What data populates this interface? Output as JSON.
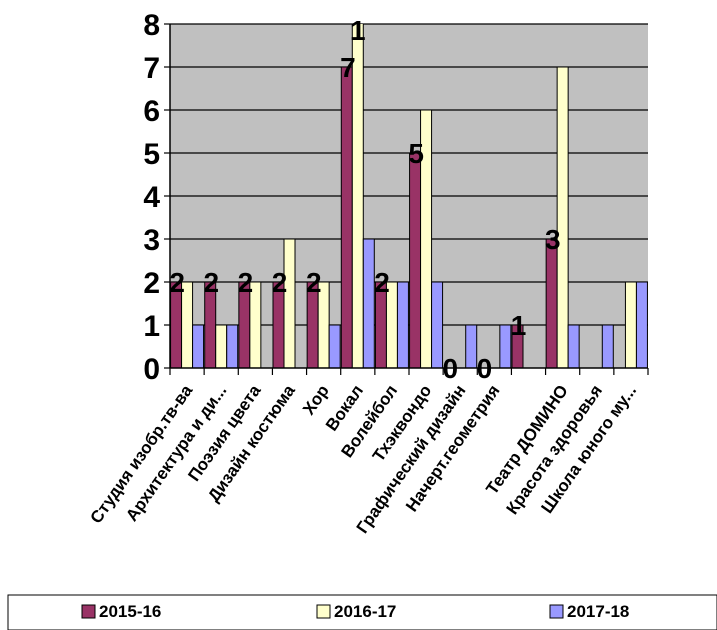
{
  "chart_data": {
    "type": "bar",
    "categories": [
      "Студия изобр.тв-ва",
      "Архитектура и ди...",
      "Поэзия цвета",
      "Дизайн костюма",
      "Хор",
      "Вокал",
      "Волейбол",
      "Тхэквондо",
      "Графический дизайн",
      "Начерт.геометрия",
      "",
      "Театр ДОМИНО",
      "Красота здоровья",
      "Школа юного му..."
    ],
    "series": [
      {
        "name": "2015-16",
        "color": "#993366",
        "values": [
          2,
          2,
          2,
          2,
          2,
          7,
          2,
          5,
          0,
          0,
          1,
          3,
          0,
          0
        ]
      },
      {
        "name": "2016-17",
        "color": "#FFFFCC",
        "values": [
          2,
          1,
          2,
          3,
          2,
          8,
          2,
          6,
          0,
          0,
          0,
          7,
          0,
          2
        ]
      },
      {
        "name": "2017-18",
        "color": "#9999FF",
        "values": [
          1,
          1,
          0,
          0,
          1,
          3,
          2,
          2,
          1,
          1,
          0,
          1,
          1,
          2
        ]
      }
    ],
    "data_labels": [
      "2",
      "2",
      "2",
      "2",
      "2",
      "7",
      "2",
      "5",
      "0",
      "0",
      "1",
      "3",
      "",
      ""
    ],
    "clipped_label": "1",
    "yticks": [
      "0",
      "1",
      "2",
      "3",
      "4",
      "5",
      "6",
      "7",
      "8"
    ],
    "ylim": [
      0,
      8
    ],
    "grid": true,
    "plot_bg": "#C0C0C0",
    "legend_position": "bottom"
  }
}
